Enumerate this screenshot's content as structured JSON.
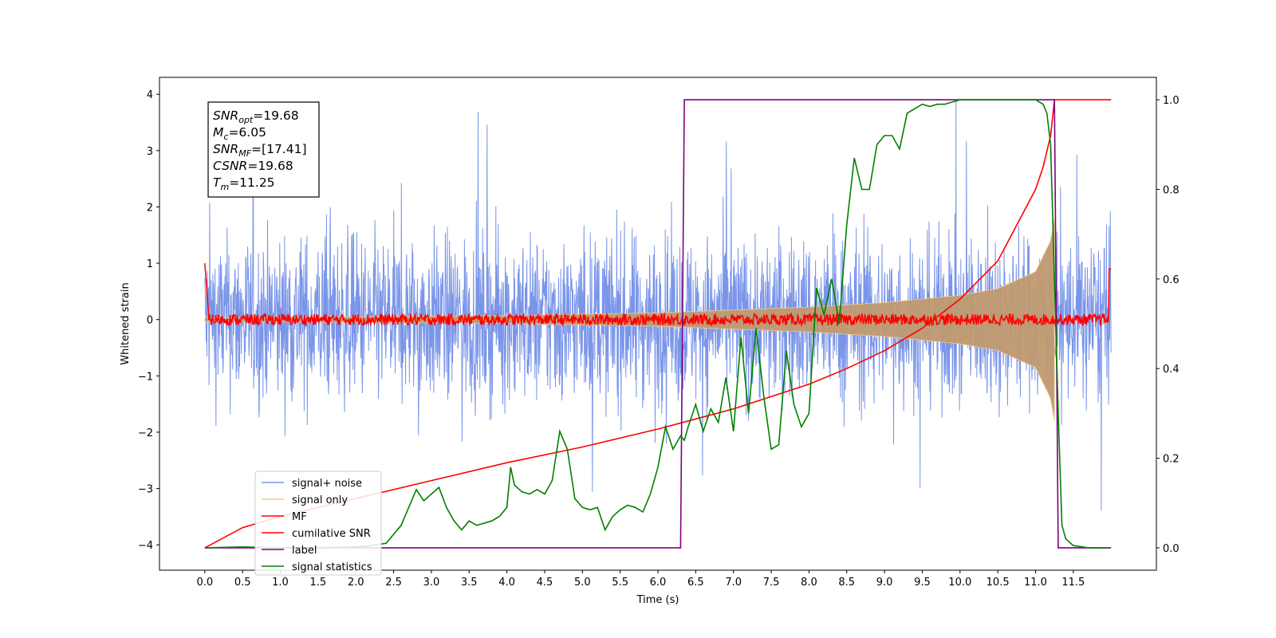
{
  "chart_data": {
    "type": "line",
    "xlabel": "Time (s)",
    "ylabel": "Whitened strain",
    "xlim": [
      -0.6,
      12.6
    ],
    "ylim": [
      -4.45,
      4.3
    ],
    "y2lim": [
      -0.05,
      1.05
    ],
    "x_ticks": [
      "0.0",
      "0.5",
      "1.0",
      "1.5",
      "2.0",
      "2.5",
      "3.0",
      "3.5",
      "4.0",
      "4.5",
      "5.0",
      "5.5",
      "6.0",
      "6.5",
      "7.0",
      "7.5",
      "8.0",
      "8.5",
      "9.0",
      "9.5",
      "10.0",
      "10.5",
      "11.0",
      "11.5"
    ],
    "y_ticks": [
      "−4",
      "−3",
      "−2",
      "−1",
      "0",
      "1",
      "2",
      "3",
      "4"
    ],
    "y2_ticks": [
      "0.0",
      "0.2",
      "0.4",
      "0.6",
      "0.8",
      "1.0"
    ],
    "stats_box": [
      {
        "sym": "SNR",
        "sub": "opt",
        "value": "=19.68"
      },
      {
        "sym": "M",
        "sub": "c",
        "value": "=6.05"
      },
      {
        "sym": "SNR",
        "sub": "MF",
        "value": "=[17.41]"
      },
      {
        "sym": "CSNR",
        "sub": "",
        "value": "=19.68"
      },
      {
        "sym": "T",
        "sub": "m",
        "value": "=11.25"
      }
    ],
    "legend_placement": "lower-left",
    "series": [
      {
        "name": "signal+ noise",
        "color": "#7a95e8",
        "axis": "left",
        "description": "noise band approx. ±1.5 with peaks to ±3.9, t in [0, 12]"
      },
      {
        "name": "signal only",
        "color": "#f5c98a",
        "axis": "left",
        "envelope": {
          "t": [
            0,
            4,
            6,
            8,
            9,
            10,
            10.5,
            11,
            11.2,
            11.25
          ],
          "amp": [
            0.03,
            0.07,
            0.12,
            0.22,
            0.3,
            0.43,
            0.55,
            0.85,
            1.4,
            1.8
          ]
        }
      },
      {
        "name": "MF",
        "color": "#ff0000",
        "axis": "left",
        "description": "matched-filter output near 0 (±0.15), starts at 1.0 at t=0, rises to 0.9 at t=12"
      },
      {
        "name": "cumilative SNR",
        "color": "#ff0000",
        "axis": "right",
        "x": [
          0,
          0.5,
          1,
          2,
          3,
          4,
          5,
          6,
          7,
          8,
          8.5,
          9,
          9.5,
          10,
          10.5,
          11,
          11.1,
          11.2,
          11.25,
          12
        ],
        "y": [
          0.0,
          0.045,
          0.07,
          0.11,
          0.15,
          0.19,
          0.225,
          0.265,
          0.31,
          0.365,
          0.4,
          0.44,
          0.49,
          0.555,
          0.64,
          0.8,
          0.85,
          0.92,
          1.0,
          1.0
        ]
      },
      {
        "name": "label",
        "color": "#800080",
        "axis": "right",
        "x": [
          0,
          6.3,
          6.35,
          11.25,
          11.3,
          12
        ],
        "y": [
          0,
          0,
          1,
          1,
          0,
          0
        ]
      },
      {
        "name": "signal statistics",
        "color": "#008000",
        "axis": "right",
        "x": [
          0,
          0.5,
          1,
          1.5,
          2,
          2.2,
          2.4,
          2.6,
          2.8,
          2.9,
          3.0,
          3.1,
          3.2,
          3.3,
          3.4,
          3.5,
          3.6,
          3.7,
          3.8,
          3.9,
          4.0,
          4.05,
          4.1,
          4.2,
          4.3,
          4.4,
          4.5,
          4.6,
          4.7,
          4.8,
          4.9,
          5.0,
          5.1,
          5.2,
          5.3,
          5.4,
          5.5,
          5.6,
          5.7,
          5.8,
          5.9,
          6.0,
          6.1,
          6.2,
          6.3,
          6.35,
          6.4,
          6.5,
          6.6,
          6.7,
          6.8,
          6.9,
          7.0,
          7.1,
          7.2,
          7.3,
          7.4,
          7.5,
          7.6,
          7.7,
          7.8,
          7.9,
          8.0,
          8.1,
          8.2,
          8.3,
          8.4,
          8.5,
          8.6,
          8.7,
          8.8,
          8.9,
          9.0,
          9.1,
          9.2,
          9.3,
          9.4,
          9.5,
          9.6,
          9.7,
          9.8,
          9.9,
          10.0,
          10.2,
          10.5,
          10.8,
          11.0,
          11.1,
          11.15,
          11.2,
          11.25,
          11.3,
          11.35,
          11.4,
          11.5,
          11.7,
          11.95
        ],
        "y": [
          0.0,
          0.002,
          0.0,
          0.0,
          0.002,
          0.005,
          0.01,
          0.05,
          0.13,
          0.105,
          0.12,
          0.135,
          0.09,
          0.06,
          0.04,
          0.06,
          0.05,
          0.055,
          0.06,
          0.07,
          0.09,
          0.18,
          0.14,
          0.125,
          0.12,
          0.13,
          0.12,
          0.15,
          0.26,
          0.22,
          0.11,
          0.09,
          0.085,
          0.09,
          0.04,
          0.07,
          0.085,
          0.095,
          0.09,
          0.08,
          0.12,
          0.18,
          0.27,
          0.22,
          0.25,
          0.24,
          0.27,
          0.32,
          0.26,
          0.31,
          0.28,
          0.38,
          0.26,
          0.47,
          0.3,
          0.49,
          0.34,
          0.22,
          0.23,
          0.44,
          0.32,
          0.27,
          0.3,
          0.58,
          0.52,
          0.6,
          0.5,
          0.72,
          0.87,
          0.8,
          0.8,
          0.9,
          0.92,
          0.92,
          0.89,
          0.97,
          0.98,
          0.99,
          0.985,
          0.99,
          0.99,
          0.995,
          1.0,
          1.0,
          1.0,
          1.0,
          1.0,
          0.99,
          0.97,
          0.9,
          0.6,
          0.3,
          0.05,
          0.02,
          0.005,
          0.0,
          0.0
        ]
      }
    ]
  }
}
